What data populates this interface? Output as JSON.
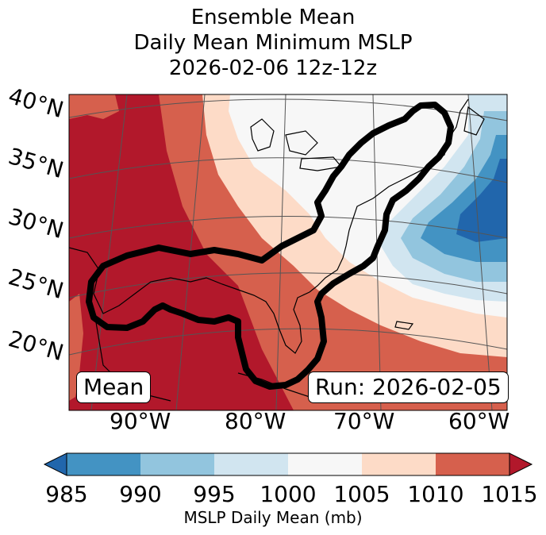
{
  "title": {
    "line1": "Ensemble Mean",
    "line2": "Daily Mean Minimum MSLP",
    "line3": "2026-02-06 12z-12z"
  },
  "map": {
    "lat_labels": [
      "40°N",
      "35°N",
      "30°N",
      "25°N",
      "20°N"
    ],
    "lon_labels": [
      "90°W",
      "80°W",
      "70°W",
      "60°W"
    ],
    "box_left": "Mean",
    "box_right": "Run: 2026-02-05"
  },
  "colorbar": {
    "ticks": [
      "985",
      "990",
      "995",
      "1000",
      "1005",
      "1010",
      "1015"
    ],
    "label": "MSLP Daily Mean (mb)",
    "colors": [
      "#2166ac",
      "#4393c3",
      "#92c5de",
      "#d1e5f0",
      "#f7f7f7",
      "#fddbc7",
      "#d6604d",
      "#b2182b"
    ]
  }
}
